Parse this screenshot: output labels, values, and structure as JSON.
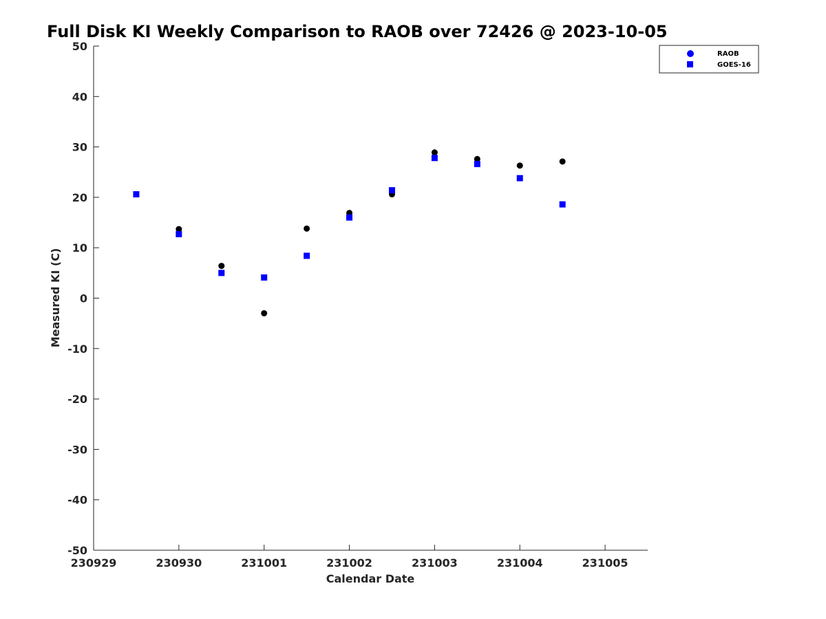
{
  "chart_data": {
    "type": "scatter",
    "title": "Full Disk KI Weekly Comparison to RAOB over 72426 @ 2023-10-05",
    "xlabel": "Calendar Date",
    "ylabel": "Measured KI (C)",
    "xlim": [
      "2023-09-29T00:00",
      "2023-10-05T12:00"
    ],
    "ylim": [
      -50,
      50
    ],
    "xticks": [
      {
        "value": "2023-09-29T00:00",
        "label": "230929"
      },
      {
        "value": "2023-09-30T00:00",
        "label": "230930"
      },
      {
        "value": "2023-10-01T00:00",
        "label": "231001"
      },
      {
        "value": "2023-10-02T00:00",
        "label": "231002"
      },
      {
        "value": "2023-10-03T00:00",
        "label": "231003"
      },
      {
        "value": "2023-10-04T00:00",
        "label": "231004"
      },
      {
        "value": "2023-10-05T00:00",
        "label": "231005"
      }
    ],
    "yticks": [
      {
        "value": 50,
        "label": "50"
      },
      {
        "value": 40,
        "label": "40"
      },
      {
        "value": 30,
        "label": "30"
      },
      {
        "value": 20,
        "label": "20"
      },
      {
        "value": 10,
        "label": "10"
      },
      {
        "value": 0,
        "label": "0"
      },
      {
        "value": -10,
        "label": "-10"
      },
      {
        "value": -20,
        "label": "-20"
      },
      {
        "value": -30,
        "label": "-30"
      },
      {
        "value": -40,
        "label": "-40"
      },
      {
        "value": -50,
        "label": "-50"
      }
    ],
    "grid": false,
    "legend_position": "top-right",
    "legend": [
      {
        "label": "RAOB",
        "marker": "circle",
        "color": "#0000ff"
      },
      {
        "label": "GOES-16",
        "marker": "square",
        "color": "#0000ff"
      }
    ],
    "series": [
      {
        "name": "RAOB",
        "marker": "circle",
        "color": "#000000",
        "points": [
          {
            "x": "2023-09-30T00:00",
            "y": 13.7
          },
          {
            "x": "2023-09-30T12:00",
            "y": 6.4
          },
          {
            "x": "2023-10-01T00:00",
            "y": -3.0
          },
          {
            "x": "2023-10-01T12:00",
            "y": 13.8
          },
          {
            "x": "2023-10-02T00:00",
            "y": 16.9
          },
          {
            "x": "2023-10-02T12:00",
            "y": 20.6
          },
          {
            "x": "2023-10-03T00:00",
            "y": 28.9
          },
          {
            "x": "2023-10-03T12:00",
            "y": 27.6
          },
          {
            "x": "2023-10-04T00:00",
            "y": 26.3
          },
          {
            "x": "2023-10-04T12:00",
            "y": 27.1
          }
        ]
      },
      {
        "name": "GOES-16",
        "marker": "square",
        "color": "#0000ff",
        "points": [
          {
            "x": "2023-09-29T12:00",
            "y": 20.6
          },
          {
            "x": "2023-09-30T00:00",
            "y": 12.7
          },
          {
            "x": "2023-09-30T12:00",
            "y": 5.0
          },
          {
            "x": "2023-10-01T00:00",
            "y": 4.1
          },
          {
            "x": "2023-10-01T12:00",
            "y": 8.4
          },
          {
            "x": "2023-10-02T00:00",
            "y": 16.0
          },
          {
            "x": "2023-10-02T12:00",
            "y": 21.4
          },
          {
            "x": "2023-10-03T00:00",
            "y": 27.8
          },
          {
            "x": "2023-10-03T12:00",
            "y": 26.6
          },
          {
            "x": "2023-10-04T00:00",
            "y": 23.8
          },
          {
            "x": "2023-10-04T12:00",
            "y": 18.6
          }
        ]
      }
    ]
  }
}
